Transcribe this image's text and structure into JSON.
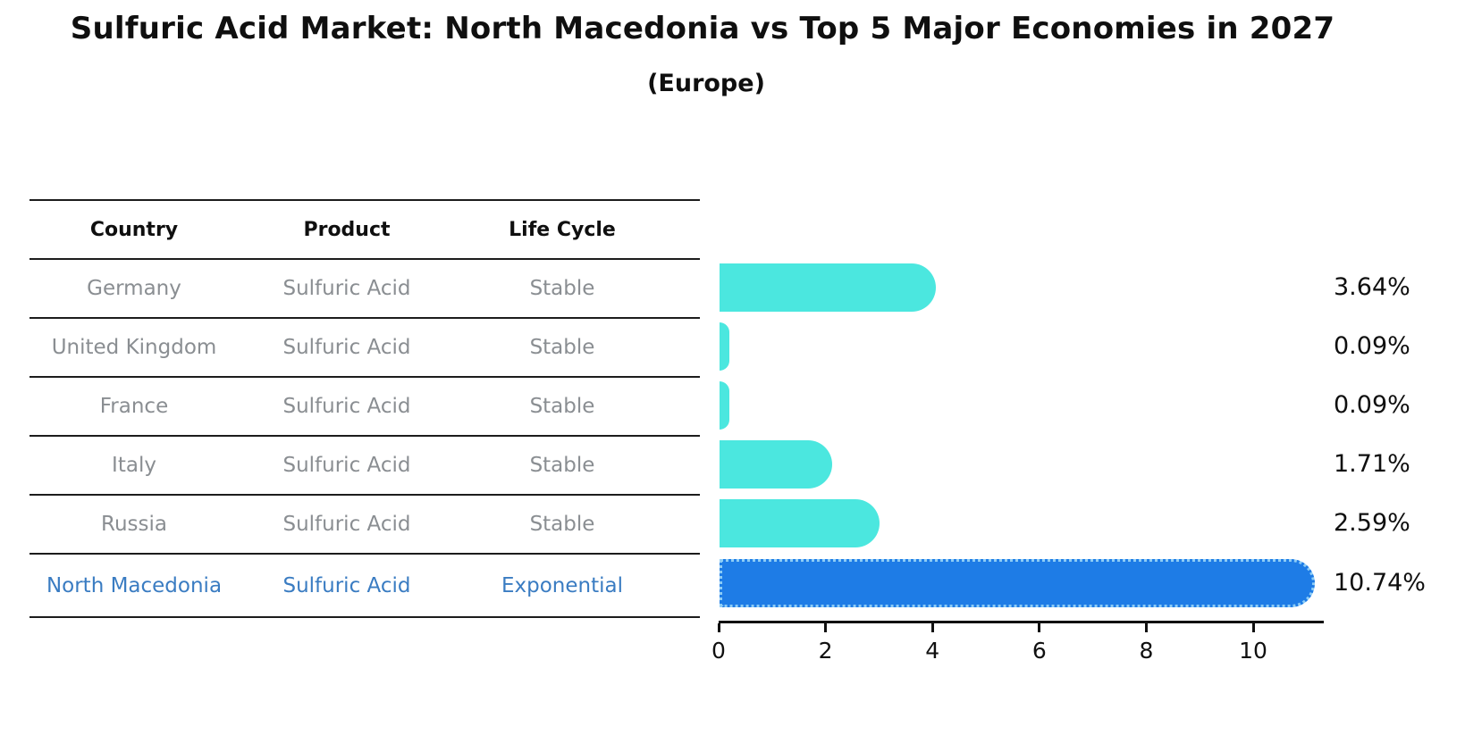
{
  "header": {
    "title": "Sulfuric Acid Market: North Macedonia vs Top 5 Major Economies in 2027",
    "subtitle": "(Europe)"
  },
  "table": {
    "columns": [
      "Country",
      "Product",
      "Life Cycle"
    ],
    "rows": [
      {
        "country": "Germany",
        "product": "Sulfuric Acid",
        "life_cycle": "Stable",
        "highlight": false
      },
      {
        "country": "United Kingdom",
        "product": "Sulfuric Acid",
        "life_cycle": "Stable",
        "highlight": false
      },
      {
        "country": "France",
        "product": "Sulfuric Acid",
        "life_cycle": "Stable",
        "highlight": false
      },
      {
        "country": "Italy",
        "product": "Sulfuric Acid",
        "life_cycle": "Stable",
        "highlight": false
      },
      {
        "country": "Russia",
        "product": "Sulfuric Acid",
        "life_cycle": "Stable",
        "highlight": false
      },
      {
        "country": "North Macedonia",
        "product": "Sulfuric Acid",
        "life_cycle": "Exponential",
        "highlight": true
      }
    ]
  },
  "chart_data": {
    "type": "bar",
    "orientation": "horizontal",
    "title": "Sulfuric Acid Market: North Macedonia vs Top 5 Major Economies in 2027 (Europe)",
    "categories": [
      "Germany",
      "United Kingdom",
      "France",
      "Italy",
      "Russia",
      "North Macedonia"
    ],
    "values": [
      3.64,
      0.09,
      0.09,
      1.71,
      2.59,
      10.74
    ],
    "value_labels": [
      "3.64%",
      "0.09%",
      "0.09%",
      "1.71%",
      "2.59%",
      "10.74%"
    ],
    "x_ticks": [
      0,
      2,
      4,
      6,
      8,
      10
    ],
    "xlim": [
      0,
      11.3
    ],
    "xlabel": "",
    "ylabel": "",
    "grid": false,
    "legend": null,
    "highlight_index": 5,
    "bar_colors": {
      "default": "#4BE7DF",
      "highlight": "#1E7CE6"
    },
    "highlight_edge_color": "#8ECDF6"
  },
  "colors": {
    "title": "#0f0f0f",
    "table_line": "#1c1c1c",
    "row_text": "#8a8e92",
    "highlight_text": "#3a7cc2",
    "axis": "#101010"
  }
}
